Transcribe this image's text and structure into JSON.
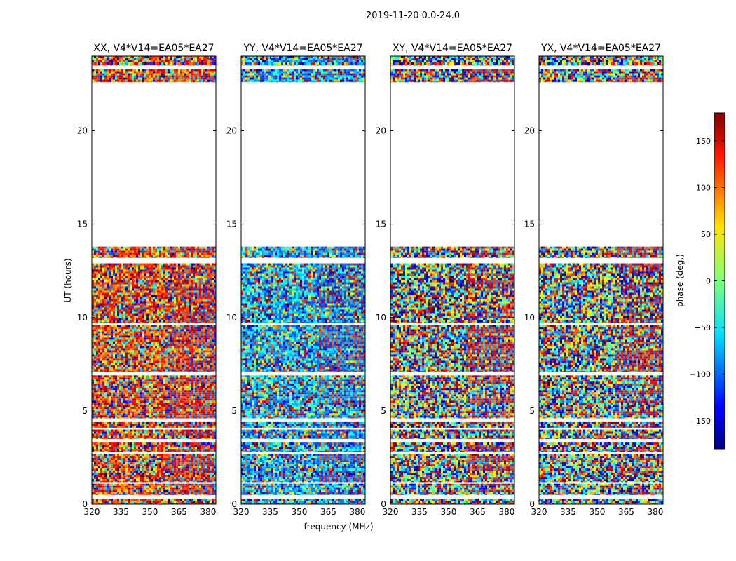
{
  "chart_data": {
    "type": "heatmap",
    "suptitle": "2019-11-20 0.0-24.0",
    "xlabel": "frequency (MHz)",
    "ylabel": "UT (hours)",
    "xlim": [
      320,
      384
    ],
    "ylim": [
      0,
      24
    ],
    "xticks": [
      320,
      335,
      350,
      365,
      380
    ],
    "yticks": [
      0,
      5,
      10,
      15,
      20
    ],
    "panels": [
      {
        "title": "XX, V4*V14=EA05*EA27",
        "pol": "XX"
      },
      {
        "title": "YY, V4*V14=EA05*EA27",
        "pol": "YY"
      },
      {
        "title": "XY, V4*V14=EA05*EA27",
        "pol": "XY"
      },
      {
        "title": "YX, V4*V14=EA05*EA27",
        "pol": "YX"
      }
    ],
    "data_segments_ut_hours": [
      [
        0.0,
        0.3
      ],
      [
        0.5,
        1.1
      ],
      [
        1.15,
        2.7
      ],
      [
        2.8,
        3.3
      ],
      [
        3.5,
        4.0
      ],
      [
        4.1,
        4.4
      ],
      [
        4.6,
        6.9
      ],
      [
        7.1,
        9.6
      ],
      [
        9.7,
        12.9
      ],
      [
        13.2,
        13.8
      ],
      [
        22.6,
        23.3
      ],
      [
        23.5,
        24.0
      ]
    ],
    "colorbar": {
      "label": "phase (deg.)",
      "range": [
        -180,
        180
      ],
      "ticks": [
        -150,
        -100,
        -50,
        0,
        50,
        100,
        150
      ],
      "colormap": "jet"
    }
  }
}
